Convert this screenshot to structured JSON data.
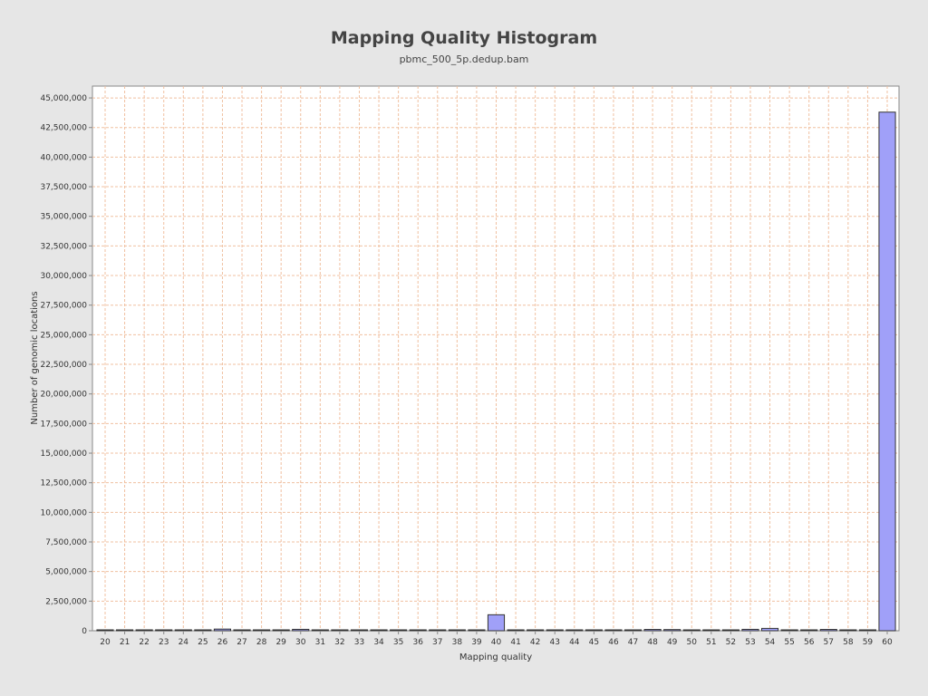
{
  "chart_data": {
    "type": "bar",
    "title": "Mapping Quality Histogram",
    "subtitle": "pbmc_500_5p.dedup.bam",
    "xlabel": "Mapping quality",
    "ylabel": "Number of genomic locations",
    "categories": [
      "20",
      "21",
      "22",
      "23",
      "24",
      "25",
      "26",
      "27",
      "28",
      "29",
      "30",
      "31",
      "32",
      "33",
      "34",
      "35",
      "36",
      "37",
      "38",
      "39",
      "40",
      "41",
      "42",
      "43",
      "44",
      "45",
      "46",
      "47",
      "48",
      "49",
      "50",
      "51",
      "52",
      "53",
      "54",
      "55",
      "56",
      "57",
      "58",
      "59",
      "60"
    ],
    "values": [
      15000,
      10000,
      10000,
      12000,
      70000,
      12000,
      140000,
      20000,
      15000,
      15000,
      120000,
      20000,
      18000,
      15000,
      15000,
      12000,
      15000,
      10000,
      10000,
      10000,
      1350000,
      60000,
      60000,
      60000,
      60000,
      55000,
      55000,
      55000,
      110000,
      100000,
      70000,
      60000,
      65000,
      120000,
      200000,
      50000,
      50000,
      110000,
      60000,
      60000,
      43800000
    ],
    "ylim": [
      0,
      46000000
    ],
    "yticks": [
      0,
      2500000,
      5000000,
      7500000,
      10000000,
      12500000,
      15000000,
      17500000,
      20000000,
      22500000,
      25000000,
      27500000,
      30000000,
      32500000,
      35000000,
      37500000,
      40000000,
      42500000,
      45000000
    ],
    "ytick_labels": [
      "0",
      "2,500,000",
      "5,000,000",
      "7,500,000",
      "10,000,000",
      "12,500,000",
      "15,000,000",
      "17,500,000",
      "20,000,000",
      "22,500,000",
      "25,000,000",
      "27,500,000",
      "30,000,000",
      "32,500,000",
      "35,000,000",
      "37,500,000",
      "40,000,000",
      "42,500,000",
      "45,000,000"
    ],
    "grid": true,
    "colors": {
      "bar_fill": "#a0a0f8",
      "bar_stroke": "#333333",
      "grid": "#f0c0a0",
      "plot_bg": "#ffffff",
      "page_bg": "#e6e6e6",
      "axis": "#888888"
    }
  }
}
